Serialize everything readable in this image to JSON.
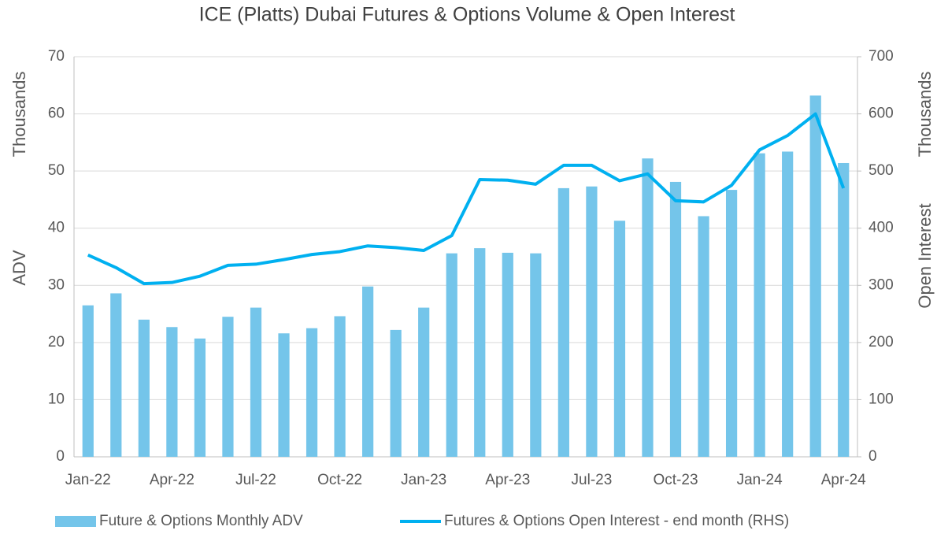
{
  "chart_data": {
    "type": "bar_line",
    "title": "ICE (Platts) Dubai Futures & Options Volume & Open Interest",
    "y_label_unit": "Thousands",
    "y_label": "ADV",
    "y2_label_unit": "Thousands",
    "y2_label": "Open Interest",
    "categories": [
      "Jan-22",
      null,
      null,
      "Apr-22",
      null,
      null,
      "Jul-22",
      null,
      null,
      "Oct-22",
      null,
      null,
      "Jan-23",
      null,
      null,
      "Apr-23",
      null,
      null,
      "Jul-23",
      null,
      null,
      "Oct-23",
      null,
      null,
      "Jan-24",
      null,
      null,
      "Apr-24"
    ],
    "series": [
      {
        "name": "Future & Options Monthly ADV",
        "type": "bar",
        "axis": "y",
        "color": "#74c5ea",
        "values": [
          26.5,
          28.6,
          24.0,
          22.7,
          20.7,
          24.5,
          26.1,
          21.6,
          22.5,
          24.6,
          29.8,
          22.2,
          26.1,
          35.6,
          36.5,
          35.7,
          35.6,
          47.0,
          47.3,
          41.3,
          52.2,
          48.1,
          42.1,
          46.7,
          53.1,
          53.4,
          63.2,
          51.4
        ]
      },
      {
        "name": "Futures & Options Open Interest - end month (RHS)",
        "type": "line",
        "axis": "y2",
        "color": "#00b0f0",
        "values": [
          353,
          331,
          303,
          305,
          316,
          335,
          337,
          345,
          354,
          359,
          369,
          366,
          361,
          387,
          485,
          484,
          477,
          510,
          510,
          483,
          495,
          448,
          446,
          475,
          537,
          562,
          600,
          470
        ]
      }
    ],
    "ylim": [
      0,
      70
    ],
    "yticks": [
      0,
      10,
      20,
      30,
      40,
      50,
      60,
      70
    ],
    "y2lim": [
      0,
      700
    ],
    "y2ticks": [
      0,
      100,
      200,
      300,
      400,
      500,
      600,
      700
    ],
    "grid": true
  }
}
